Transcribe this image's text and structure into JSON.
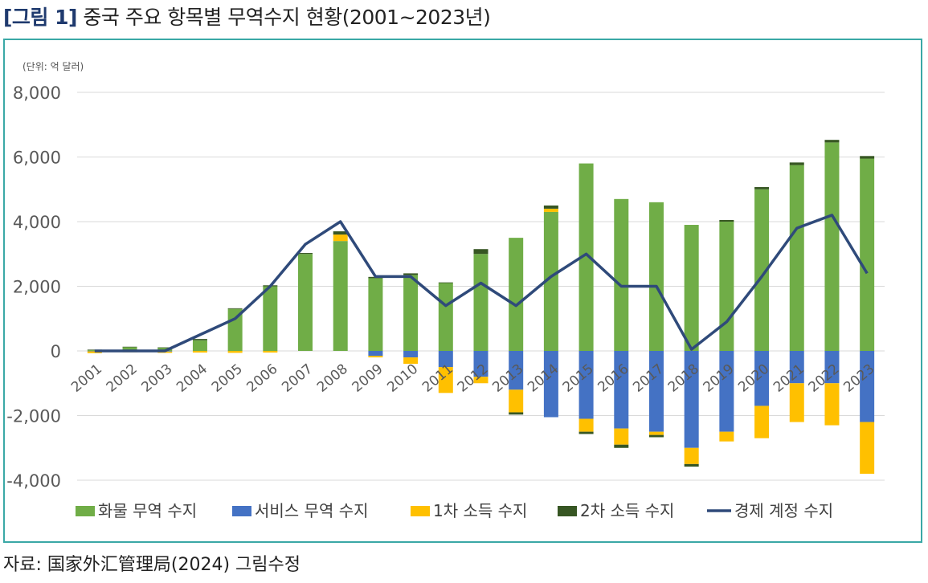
{
  "figure": {
    "tag": "[그림 1]",
    "title": "중국 주요 항목별 무역수지 현황(2001~2023년)",
    "source": "자료:  国家外汇管理局(2024)  그림수정"
  },
  "chart_data": {
    "type": "bar",
    "stacked": true,
    "unit_label": "(단위: 억 달러)",
    "ylim": [
      -4000,
      8000
    ],
    "yticks": [
      -4000,
      -2000,
      0,
      2000,
      4000,
      6000,
      8000
    ],
    "ytick_labels": [
      "-4,000",
      "-2,000",
      "0",
      "2,000",
      "4,000",
      "6,000",
      "8,000"
    ],
    "grid": true,
    "legend_position": "bottom",
    "categories": [
      "2001",
      "2002",
      "2003",
      "2004",
      "2005",
      "2006",
      "2007",
      "2008",
      "2009",
      "2010",
      "2011",
      "2012",
      "2013",
      "2014",
      "2015",
      "2016",
      "2017",
      "2018",
      "2019",
      "2020",
      "2021",
      "2022",
      "2023"
    ],
    "series": [
      {
        "name": "화물 무역 수지",
        "kind": "bar",
        "color": "#70ad47",
        "values": [
          30,
          120,
          100,
          330,
          1300,
          2000,
          3000,
          3400,
          2250,
          2350,
          2100,
          3000,
          3500,
          4300,
          5800,
          4700,
          4600,
          3900,
          4000,
          5000,
          5750,
          6450,
          5950
        ]
      },
      {
        "name": "서비스 무역 수지",
        "kind": "bar",
        "color": "#4472c4",
        "values": [
          -10,
          0,
          -20,
          0,
          0,
          0,
          0,
          0,
          -150,
          -200,
          -500,
          -800,
          -1200,
          -2050,
          -2100,
          -2400,
          -2500,
          -3000,
          -2500,
          -1700,
          -1000,
          -1000,
          -2200
        ]
      },
      {
        "name": "1차 소득 수지",
        "kind": "bar",
        "color": "#ffc000",
        "values": [
          -60,
          -40,
          -40,
          -50,
          -60,
          -50,
          0,
          200,
          -50,
          -200,
          -800,
          -200,
          -700,
          100,
          -400,
          -500,
          -100,
          -500,
          -300,
          -1000,
          -1200,
          -1300,
          -1600
        ]
      },
      {
        "name": "2차 소득 수지",
        "kind": "bar",
        "color": "#375623",
        "values": [
          10,
          10,
          10,
          40,
          20,
          30,
          30,
          100,
          40,
          50,
          20,
          150,
          -70,
          100,
          -70,
          -100,
          -70,
          -80,
          50,
          70,
          80,
          80,
          80
        ]
      },
      {
        "name": "경제 계정 수지",
        "kind": "line",
        "color": "#2f4a7a",
        "values": [
          0,
          0,
          0,
          500,
          1000,
          2000,
          3300,
          4000,
          2300,
          2300,
          1400,
          2100,
          1400,
          2300,
          3000,
          2000,
          2000,
          50,
          900,
          2300,
          3800,
          4200,
          2400
        ]
      }
    ]
  }
}
